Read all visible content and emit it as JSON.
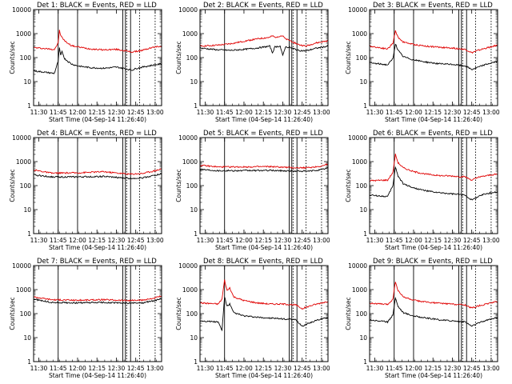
{
  "figure": {
    "x_tick_labels": [
      "11:30",
      "11:45",
      "12:00",
      "12:15",
      "12:30",
      "12:45",
      "13:00"
    ],
    "y_tick_labels": [
      "1",
      "10",
      "100",
      "1000",
      "10000"
    ],
    "ylabel": "Counts/sec",
    "xlabel": "Start Time (04-Sep-14 11:26:40)",
    "colors": {
      "events": "#000000",
      "lld": "#e00000",
      "axes": "#000000"
    }
  },
  "chart_data": [
    {
      "type": "line",
      "title": "Det 1: BLACK = Events, RED = LLD",
      "xlabel": "Start Time (04-Sep-14 11:26:40)",
      "ylabel": "Counts/sec",
      "y_scale": "log",
      "ylim": [
        1,
        10000
      ],
      "xlim": [
        "11:26",
        "13:05"
      ],
      "x_tick_labels": [
        "11:30",
        "11:45",
        "12:00",
        "12:15",
        "12:30",
        "12:45",
        "13:00"
      ],
      "vlines_solid": [
        "11:45",
        "12:00",
        "12:35",
        "12:37",
        "12:41"
      ],
      "vlines_dotted": [
        "12:38",
        "12:48",
        "13:00"
      ],
      "series": [
        {
          "color": "#e00000",
          "x": [
            "11:26",
            "11:42",
            "11:45",
            "11:46",
            "11:47",
            "11:48",
            "11:50",
            "11:55",
            "12:00",
            "12:10",
            "12:20",
            "12:30",
            "12:35",
            "12:42",
            "12:45",
            "12:50",
            "12:55",
            "13:00",
            "13:05"
          ],
          "values": [
            260,
            220,
            400,
            1400,
            800,
            700,
            500,
            320,
            280,
            230,
            210,
            220,
            200,
            170,
            180,
            200,
            240,
            280,
            300
          ]
        },
        {
          "color": "#000000",
          "x": [
            "11:26",
            "11:42",
            "11:45",
            "11:46",
            "11:47",
            "11:48",
            "11:50",
            "11:55",
            "12:00",
            "12:10",
            "12:20",
            "12:30",
            "12:35",
            "12:42",
            "12:45",
            "12:50",
            "12:55",
            "13:00",
            "13:05"
          ],
          "values": [
            28,
            22,
            70,
            250,
            120,
            180,
            90,
            55,
            45,
            38,
            36,
            40,
            36,
            30,
            35,
            40,
            45,
            50,
            55
          ]
        }
      ]
    },
    {
      "type": "line",
      "title": "Det 2: BLACK = Events, RED = LLD",
      "xlabel": "Start Time (04-Sep-14 11:26:40)",
      "ylabel": "Counts/sec",
      "y_scale": "log",
      "ylim": [
        1,
        10000
      ],
      "xlim": [
        "11:26",
        "13:05"
      ],
      "x_tick_labels": [
        "11:30",
        "11:45",
        "12:00",
        "12:15",
        "12:30",
        "12:45",
        "13:00"
      ],
      "vlines_solid": [
        "11:45",
        "12:35",
        "12:37",
        "12:41"
      ],
      "vlines_dotted": [
        "12:38",
        "12:48",
        "13:00"
      ],
      "series": [
        {
          "color": "#e00000",
          "x": [
            "11:26",
            "11:40",
            "11:50",
            "12:00",
            "12:10",
            "12:20",
            "12:22",
            "12:24",
            "12:28",
            "12:30",
            "12:32",
            "12:36",
            "12:42",
            "12:48",
            "12:55",
            "13:05"
          ],
          "values": [
            300,
            330,
            380,
            480,
            600,
            700,
            800,
            700,
            800,
            800,
            600,
            500,
            350,
            300,
            400,
            500
          ]
        },
        {
          "color": "#000000",
          "x": [
            "11:26",
            "11:40",
            "11:50",
            "12:00",
            "12:10",
            "12:20",
            "12:22",
            "12:24",
            "12:28",
            "12:30",
            "12:32",
            "12:36",
            "12:42",
            "12:48",
            "12:55",
            "13:05"
          ],
          "values": [
            250,
            210,
            200,
            220,
            250,
            300,
            160,
            280,
            300,
            120,
            280,
            260,
            200,
            190,
            240,
            300
          ]
        }
      ]
    },
    {
      "type": "line",
      "title": "Det 3: BLACK = Events, RED = LLD",
      "xlabel": "Start Time (04-Sep-14 11:26:40)",
      "ylabel": "Counts/sec",
      "y_scale": "log",
      "ylim": [
        1,
        10000
      ],
      "xlim": [
        "11:26",
        "13:05"
      ],
      "x_tick_labels": [
        "11:30",
        "11:45",
        "12:00",
        "12:15",
        "12:30",
        "12:45",
        "13:00"
      ],
      "vlines_solid": [
        "11:45",
        "12:00",
        "12:35",
        "12:37",
        "12:41"
      ],
      "vlines_dotted": [
        "12:38",
        "12:48",
        "13:00"
      ],
      "series": [
        {
          "color": "#e00000",
          "x": [
            "11:26",
            "11:40",
            "11:44",
            "11:46",
            "11:48",
            "11:52",
            "12:00",
            "12:10",
            "12:20",
            "12:30",
            "12:40",
            "12:45",
            "12:50",
            "12:55",
            "13:00",
            "13:05"
          ],
          "values": [
            300,
            230,
            400,
            1300,
            700,
            450,
            350,
            300,
            270,
            250,
            220,
            160,
            200,
            240,
            280,
            330
          ]
        },
        {
          "color": "#000000",
          "x": [
            "11:26",
            "11:40",
            "11:44",
            "11:46",
            "11:48",
            "11:52",
            "12:00",
            "12:10",
            "12:20",
            "12:30",
            "12:40",
            "12:45",
            "12:50",
            "12:55",
            "13:00",
            "13:05"
          ],
          "values": [
            60,
            50,
            90,
            380,
            200,
            110,
            80,
            65,
            55,
            52,
            45,
            32,
            40,
            50,
            60,
            70
          ]
        }
      ]
    },
    {
      "type": "line",
      "title": "Det 4: BLACK = Events, RED = LLD",
      "xlabel": "Start Time (04-Sep-14 11:26:40)",
      "ylabel": "Counts/sec",
      "y_scale": "log",
      "ylim": [
        1,
        10000
      ],
      "xlim": [
        "11:26",
        "13:05"
      ],
      "x_tick_labels": [
        "11:30",
        "11:45",
        "12:00",
        "12:15",
        "12:30",
        "12:45",
        "13:00"
      ],
      "vlines_solid": [
        "11:45",
        "12:00",
        "12:35",
        "12:37",
        "12:41"
      ],
      "vlines_dotted": [
        "12:38",
        "12:48",
        "13:00"
      ],
      "series": [
        {
          "color": "#e00000",
          "x": [
            "11:26",
            "11:40",
            "12:00",
            "12:20",
            "12:40",
            "12:50",
            "13:00",
            "13:05"
          ],
          "values": [
            450,
            330,
            340,
            380,
            300,
            320,
            420,
            500
          ]
        },
        {
          "color": "#000000",
          "x": [
            "11:26",
            "11:40",
            "12:00",
            "12:20",
            "12:40",
            "12:50",
            "13:00",
            "13:05"
          ],
          "values": [
            280,
            230,
            230,
            240,
            200,
            210,
            270,
            310
          ]
        }
      ]
    },
    {
      "type": "line",
      "title": "Det 5: BLACK = Events, RED = LLD",
      "xlabel": "Start Time (04-Sep-14 11:26:40)",
      "ylabel": "Counts/sec",
      "y_scale": "log",
      "ylim": [
        1,
        10000
      ],
      "xlim": [
        "11:26",
        "13:05"
      ],
      "x_tick_labels": [
        "11:30",
        "11:45",
        "12:00",
        "12:15",
        "12:30",
        "12:45",
        "13:00"
      ],
      "vlines_solid": [
        "11:45",
        "12:35",
        "12:37",
        "12:41"
      ],
      "vlines_dotted": [
        "12:38",
        "12:48",
        "13:00"
      ],
      "series": [
        {
          "color": "#e00000",
          "x": [
            "11:26",
            "11:40",
            "12:00",
            "12:20",
            "12:40",
            "12:50",
            "13:00",
            "13:05"
          ],
          "values": [
            700,
            600,
            600,
            620,
            550,
            560,
            650,
            800
          ]
        },
        {
          "color": "#000000",
          "x": [
            "11:26",
            "11:40",
            "12:00",
            "12:20",
            "12:40",
            "12:50",
            "13:00",
            "13:05"
          ],
          "values": [
            480,
            420,
            420,
            430,
            400,
            400,
            460,
            560
          ]
        }
      ]
    },
    {
      "type": "line",
      "title": "Det 6: BLACK = Events, RED = LLD",
      "xlabel": "Start Time (04-Sep-14 11:26:40)",
      "ylabel": "Counts/sec",
      "y_scale": "log",
      "ylim": [
        1,
        10000
      ],
      "xlim": [
        "11:26",
        "13:05"
      ],
      "x_tick_labels": [
        "11:30",
        "11:45",
        "12:00",
        "12:15",
        "12:30",
        "12:45",
        "13:00"
      ],
      "vlines_solid": [
        "11:45",
        "12:35",
        "12:37",
        "12:41"
      ],
      "vlines_dotted": [
        "12:38",
        "12:48",
        "13:00"
      ],
      "series": [
        {
          "color": "#e00000",
          "x": [
            "11:26",
            "11:40",
            "11:44",
            "11:46",
            "11:48",
            "11:52",
            "12:00",
            "12:10",
            "12:20",
            "12:30",
            "12:40",
            "12:45",
            "12:50",
            "12:55",
            "13:00",
            "13:05"
          ],
          "values": [
            160,
            170,
            350,
            2000,
            900,
            550,
            380,
            300,
            260,
            250,
            230,
            170,
            220,
            250,
            280,
            300
          ]
        },
        {
          "color": "#000000",
          "x": [
            "11:26",
            "11:40",
            "11:44",
            "11:46",
            "11:48",
            "11:52",
            "12:00",
            "12:10",
            "12:20",
            "12:30",
            "12:40",
            "12:45",
            "12:50",
            "12:55",
            "13:00",
            "13:05"
          ],
          "values": [
            40,
            35,
            100,
            600,
            250,
            120,
            80,
            60,
            50,
            45,
            40,
            25,
            35,
            45,
            50,
            55
          ]
        }
      ]
    },
    {
      "type": "line",
      "title": "Det 7: BLACK = Events, RED = LLD",
      "xlabel": "Start Time (04-Sep-14 11:26:40)",
      "ylabel": "Counts/sec",
      "y_scale": "log",
      "ylim": [
        1,
        10000
      ],
      "xlim": [
        "11:26",
        "13:05"
      ],
      "x_tick_labels": [
        "11:30",
        "11:45",
        "12:00",
        "12:15",
        "12:30",
        "12:45",
        "13:00"
      ],
      "vlines_solid": [
        "11:45",
        "12:35",
        "12:37",
        "12:41"
      ],
      "vlines_dotted": [
        "12:38",
        "12:48",
        "13:00"
      ],
      "series": [
        {
          "color": "#e00000",
          "x": [
            "11:26",
            "11:40",
            "12:00",
            "12:20",
            "12:40",
            "12:50",
            "13:00",
            "13:05"
          ],
          "values": [
            500,
            380,
            360,
            380,
            350,
            360,
            450,
            550
          ]
        },
        {
          "color": "#000000",
          "x": [
            "11:26",
            "11:40",
            "12:00",
            "12:20",
            "12:40",
            "12:50",
            "13:00",
            "13:05"
          ],
          "values": [
            400,
            290,
            280,
            290,
            270,
            280,
            350,
            430
          ]
        }
      ]
    },
    {
      "type": "line",
      "title": "Det 8: BLACK = Events, RED = LLD",
      "xlabel": "Start Time (04-Sep-14 11:26:40)",
      "ylabel": "Counts/sec",
      "y_scale": "log",
      "ylim": [
        1,
        10000
      ],
      "xlim": [
        "11:26",
        "13:05"
      ],
      "x_tick_labels": [
        "11:30",
        "11:45",
        "12:00",
        "12:15",
        "12:30",
        "12:45",
        "13:00"
      ],
      "vlines_solid": [
        "11:45",
        "12:35",
        "12:37",
        "12:41"
      ],
      "vlines_dotted": [
        "12:38",
        "12:48",
        "13:00"
      ],
      "series": [
        {
          "color": "#e00000",
          "x": [
            "11:26",
            "11:40",
            "11:43",
            "11:45",
            "11:47",
            "11:49",
            "11:52",
            "12:00",
            "12:10",
            "12:20",
            "12:30",
            "12:40",
            "12:45",
            "12:50",
            "12:55",
            "13:00",
            "13:05"
          ],
          "values": [
            280,
            250,
            400,
            2500,
            900,
            1200,
            500,
            350,
            280,
            250,
            250,
            230,
            160,
            200,
            240,
            280,
            320
          ]
        },
        {
          "color": "#000000",
          "x": [
            "11:26",
            "11:40",
            "11:43",
            "11:45",
            "11:47",
            "11:49",
            "11:52",
            "12:00",
            "12:10",
            "12:20",
            "12:30",
            "12:40",
            "12:45",
            "12:50",
            "12:55",
            "13:00",
            "13:05"
          ],
          "values": [
            50,
            45,
            20,
            500,
            200,
            250,
            110,
            80,
            70,
            65,
            60,
            55,
            30,
            40,
            50,
            60,
            70
          ]
        }
      ]
    },
    {
      "type": "line",
      "title": "Det 9: BLACK = Events, RED = LLD",
      "xlabel": "Start Time (04-Sep-14 11:26:40)",
      "ylabel": "Counts/sec",
      "y_scale": "log",
      "ylim": [
        1,
        10000
      ],
      "xlim": [
        "11:26",
        "13:05"
      ],
      "x_tick_labels": [
        "11:30",
        "11:45",
        "12:00",
        "12:15",
        "12:30",
        "12:45",
        "13:00"
      ],
      "vlines_solid": [
        "11:45",
        "12:00",
        "12:35",
        "12:37",
        "12:41"
      ],
      "vlines_dotted": [
        "12:38",
        "12:48",
        "13:00"
      ],
      "series": [
        {
          "color": "#e00000",
          "x": [
            "11:26",
            "11:40",
            "11:44",
            "11:46",
            "11:48",
            "11:52",
            "12:00",
            "12:10",
            "12:20",
            "12:30",
            "12:40",
            "12:45",
            "12:50",
            "12:55",
            "13:00",
            "13:05"
          ],
          "values": [
            270,
            240,
            400,
            2200,
            900,
            500,
            360,
            300,
            270,
            250,
            230,
            170,
            210,
            240,
            280,
            320
          ]
        },
        {
          "color": "#000000",
          "x": [
            "11:26",
            "11:40",
            "11:44",
            "11:46",
            "11:48",
            "11:52",
            "12:00",
            "12:10",
            "12:20",
            "12:30",
            "12:40",
            "12:45",
            "12:50",
            "12:55",
            "13:00",
            "13:05"
          ],
          "values": [
            55,
            45,
            90,
            450,
            200,
            110,
            80,
            65,
            55,
            50,
            45,
            30,
            40,
            50,
            60,
            70
          ]
        }
      ]
    }
  ]
}
